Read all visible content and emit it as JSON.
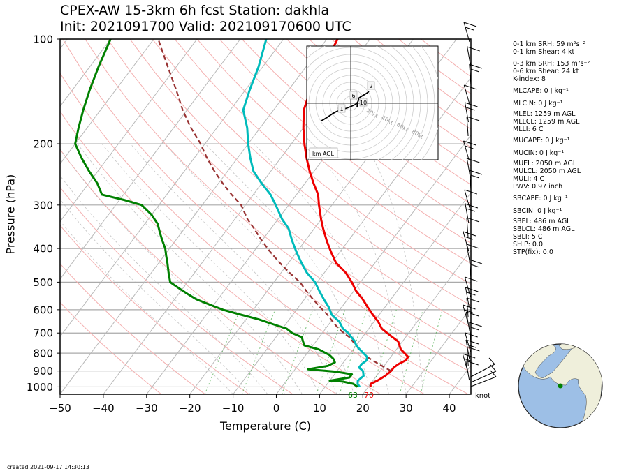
{
  "header": {
    "title_line1": "CPEX-AW 15-3km  6h fcst  Station: dakhla",
    "title_line2": "Init: 2021091700  Valid: 202109170600 UTC"
  },
  "footer": {
    "created": "created 2021-09-17 14:30:13"
  },
  "indices": {
    "group1": [
      "0-1 km SRH: 59 m²s⁻²",
      "0-1 km Shear: 4 kt"
    ],
    "group2": [
      "0-3 km SRH: 153 m²s⁻²",
      "0-6 km Shear: 24 kt",
      "K-index: 8"
    ],
    "group3": [
      "MLCAPE: 0 J kg⁻¹"
    ],
    "group4": [
      "MLCIN: 0 J kg⁻¹"
    ],
    "group5": [
      "MLEL: 1259 m AGL",
      "MLLCL: 1259 m AGL",
      "MLLI: 6 C"
    ],
    "group6": [
      "MUCAPE: 0 J kg⁻¹"
    ],
    "group7": [
      "MUCIN: 0 J kg⁻¹"
    ],
    "group8": [
      "MUEL: 2050 m AGL",
      "MULCL: 2050 m AGL",
      "MULI: 4 C",
      "PWV: 0.97 inch"
    ],
    "group9": [
      "SBCAPE: 0 J kg⁻¹"
    ],
    "group10": [
      "SBCIN: 0 J kg⁻¹"
    ],
    "group11": [
      "SBEL: 486 m AGL",
      "SBLCL: 486 m AGL",
      "SBLI: 5 C",
      "SHIP: 0.0",
      "STP(fix): 0.0"
    ]
  },
  "chart_data": {
    "type": "skew-t",
    "xlabel": "Temperature (C)",
    "ylabel": "Pressure (hPa)",
    "xlim": [
      -50,
      45
    ],
    "ylim": [
      1050,
      100
    ],
    "y_log_scale": true,
    "xticks": [
      -50,
      -40,
      -30,
      -20,
      -10,
      0,
      10,
      20,
      30,
      40
    ],
    "yticks": [
      100,
      200,
      300,
      400,
      500,
      600,
      700,
      800,
      900,
      1000
    ],
    "surface_dewpoint_label": "63",
    "surface_temperature_label": "70",
    "wind_unit_label": "knot",
    "series": [
      {
        "role": "temperature",
        "color": "#ee0000",
        "points": [
          [
            20.5,
            1000
          ],
          [
            20,
            980
          ],
          [
            21,
            960
          ],
          [
            22,
            930
          ],
          [
            22.5,
            900
          ],
          [
            22.5,
            880
          ],
          [
            23,
            860
          ],
          [
            24,
            840
          ],
          [
            24,
            820
          ],
          [
            22.5,
            800
          ],
          [
            21,
            780
          ],
          [
            20,
            760
          ],
          [
            19,
            740
          ],
          [
            17,
            720
          ],
          [
            15,
            700
          ],
          [
            13,
            680
          ],
          [
            11,
            650
          ],
          [
            8.5,
            620
          ],
          [
            6,
            590
          ],
          [
            3.5,
            560
          ],
          [
            0.5,
            530
          ],
          [
            -2,
            500
          ],
          [
            -5,
            470
          ],
          [
            -9,
            440
          ],
          [
            -12,
            410
          ],
          [
            -15,
            380
          ],
          [
            -18,
            350
          ],
          [
            -20,
            330
          ],
          [
            -23,
            300
          ],
          [
            -25,
            280
          ],
          [
            -28,
            260
          ],
          [
            -31,
            240
          ],
          [
            -34,
            220
          ],
          [
            -37,
            200
          ],
          [
            -40,
            180
          ],
          [
            -43,
            160
          ],
          [
            -45,
            140
          ],
          [
            -46,
            120
          ],
          [
            -47.5,
            100
          ]
        ]
      },
      {
        "role": "dewpoint",
        "color": "#008000",
        "points": [
          [
            17.5,
            1000
          ],
          [
            16,
            980
          ],
          [
            13,
            965
          ],
          [
            10,
            960
          ],
          [
            14,
            940
          ],
          [
            14,
            920
          ],
          [
            10,
            905
          ],
          [
            3,
            890
          ],
          [
            7,
            870
          ],
          [
            8,
            850
          ],
          [
            7,
            830
          ],
          [
            5.5,
            810
          ],
          [
            2,
            780
          ],
          [
            -2,
            760
          ],
          [
            -3,
            740
          ],
          [
            -4,
            720
          ],
          [
            -7,
            700
          ],
          [
            -9,
            680
          ],
          [
            -13,
            660
          ],
          [
            -17,
            640
          ],
          [
            -22,
            620
          ],
          [
            -27,
            600
          ],
          [
            -31,
            580
          ],
          [
            -35,
            560
          ],
          [
            -38,
            540
          ],
          [
            -41,
            520
          ],
          [
            -44,
            500
          ],
          [
            -46,
            470
          ],
          [
            -48,
            440
          ],
          [
            -49.5,
            420
          ],
          [
            -51,
            400
          ],
          [
            -53,
            380
          ],
          [
            -55,
            360
          ],
          [
            -57,
            340
          ],
          [
            -60,
            320
          ],
          [
            -64,
            300
          ],
          [
            -69,
            290
          ],
          [
            -75,
            280
          ],
          [
            -78,
            260
          ],
          [
            -82,
            240
          ],
          [
            -86,
            220
          ],
          [
            -90,
            200
          ],
          [
            -92,
            180
          ],
          [
            -94,
            160
          ],
          [
            -96,
            140
          ],
          [
            -98,
            120
          ],
          [
            -100,
            100
          ]
        ]
      },
      {
        "role": "parcel",
        "color": "#993333",
        "dashed": true,
        "points": [
          [
            22.5,
            900
          ],
          [
            20.5,
            880
          ],
          [
            18.5,
            860
          ],
          [
            16.5,
            840
          ],
          [
            14.5,
            820
          ],
          [
            13,
            800
          ],
          [
            11.5,
            780
          ],
          [
            10,
            760
          ],
          [
            8.5,
            740
          ],
          [
            7,
            720
          ],
          [
            5,
            700
          ],
          [
            3,
            680
          ],
          [
            0.5,
            650
          ],
          [
            -2,
            620
          ],
          [
            -5,
            590
          ],
          [
            -8,
            560
          ],
          [
            -11,
            530
          ],
          [
            -14,
            500
          ],
          [
            -18,
            470
          ],
          [
            -22,
            440
          ],
          [
            -26,
            410
          ],
          [
            -30,
            380
          ],
          [
            -34,
            350
          ],
          [
            -37,
            330
          ],
          [
            -41,
            300
          ],
          [
            -45,
            280
          ],
          [
            -49,
            260
          ],
          [
            -53,
            240
          ],
          [
            -57,
            220
          ],
          [
            -61,
            200
          ],
          [
            -66,
            180
          ],
          [
            -71,
            160
          ],
          [
            -76,
            140
          ],
          [
            -82,
            120
          ],
          [
            -89,
            100
          ]
        ]
      },
      {
        "role": "wetbulb",
        "color": "#00bbbb",
        "points": [
          [
            18,
            1000
          ],
          [
            17,
            980
          ],
          [
            16.5,
            960
          ],
          [
            17,
            930
          ],
          [
            16,
            900
          ],
          [
            14.5,
            880
          ],
          [
            14.5,
            860
          ],
          [
            15,
            840
          ],
          [
            14.5,
            820
          ],
          [
            13,
            800
          ],
          [
            11.5,
            780
          ],
          [
            10,
            760
          ],
          [
            9,
            740
          ],
          [
            7.5,
            720
          ],
          [
            6,
            700
          ],
          [
            4,
            680
          ],
          [
            2,
            650
          ],
          [
            -1,
            620
          ],
          [
            -3,
            590
          ],
          [
            -5.5,
            560
          ],
          [
            -8,
            530
          ],
          [
            -10.5,
            500
          ],
          [
            -14,
            470
          ],
          [
            -17,
            440
          ],
          [
            -20,
            410
          ],
          [
            -23,
            380
          ],
          [
            -26,
            350
          ],
          [
            -29,
            330
          ],
          [
            -33,
            300
          ],
          [
            -36,
            280
          ],
          [
            -40,
            260
          ],
          [
            -44,
            240
          ],
          [
            -47,
            220
          ],
          [
            -50,
            200
          ],
          [
            -53,
            180
          ],
          [
            -57,
            160
          ],
          [
            -59,
            140
          ],
          [
            -61,
            120
          ],
          [
            -64,
            100
          ]
        ]
      }
    ],
    "hodograph": {
      "label": "km AGL",
      "ring_labels": [
        "20kt",
        "40kt",
        "60kt",
        "80kt"
      ],
      "height_labels": [
        "1",
        "2",
        "6",
        "10"
      ]
    }
  }
}
